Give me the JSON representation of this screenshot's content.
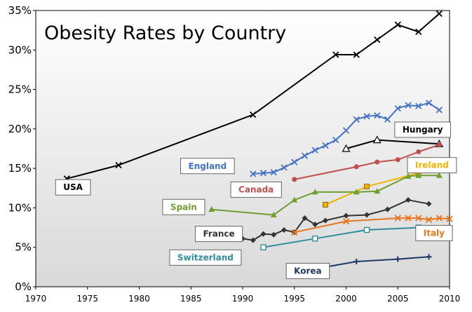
{
  "chart_data": {
    "type": "line",
    "title": "Obesity Rates by Country",
    "xlabel": "",
    "ylabel": "",
    "xlim": [
      1970,
      2010
    ],
    "ylim": [
      0,
      35
    ],
    "x_ticks": [
      "1970",
      "1975",
      "1980",
      "1985",
      "1990",
      "1995",
      "2000",
      "2005",
      "2010"
    ],
    "y_ticks": [
      "0%",
      "5%",
      "10%",
      "15%",
      "20%",
      "25%",
      "30%",
      "35%"
    ],
    "grid": "none",
    "background": "light-gray gradient",
    "series": [
      {
        "name": "USA",
        "color": "#000000",
        "marker": "x",
        "points": [
          [
            1973,
            13.7
          ],
          [
            1978,
            15.4
          ],
          [
            1991,
            21.8
          ],
          [
            1999,
            29.4
          ],
          [
            2001,
            29.4
          ],
          [
            2003,
            31.3
          ],
          [
            2005,
            33.2
          ],
          [
            2007,
            32.3
          ],
          [
            2009,
            34.6
          ]
        ]
      },
      {
        "name": "England",
        "color": "#4472c4",
        "marker": "x",
        "points": [
          [
            1991,
            14.3
          ],
          [
            1992,
            14.4
          ],
          [
            1993,
            14.5
          ],
          [
            1994,
            15.1
          ],
          [
            1995,
            15.8
          ],
          [
            1996,
            16.6
          ],
          [
            1997,
            17.3
          ],
          [
            1998,
            17.9
          ],
          [
            1999,
            18.6
          ],
          [
            2000,
            19.8
          ],
          [
            2001,
            21.2
          ],
          [
            2002,
            21.6
          ],
          [
            2003,
            21.7
          ],
          [
            2004,
            21.2
          ],
          [
            2005,
            22.6
          ],
          [
            2006,
            23.0
          ],
          [
            2007,
            22.9
          ],
          [
            2008,
            23.3
          ],
          [
            2009,
            22.4
          ]
        ]
      },
      {
        "name": "Hungary",
        "color": "#000000",
        "marker": "triangle-open",
        "points": [
          [
            2000,
            17.5
          ],
          [
            2003,
            18.6
          ],
          [
            2009,
            18.1
          ]
        ]
      },
      {
        "name": "Canada",
        "color": "#c0504d",
        "marker": "circle",
        "points": [
          [
            1995,
            13.6
          ],
          [
            2001,
            15.2
          ],
          [
            2003,
            15.8
          ],
          [
            2005,
            16.1
          ],
          [
            2007,
            17.1
          ],
          [
            2009,
            18.0
          ]
        ]
      },
      {
        "name": "Ireland",
        "color": "#f0b400",
        "marker": "square",
        "points": [
          [
            1998,
            10.4
          ],
          [
            2002,
            12.7
          ],
          [
            2007,
            14.4
          ]
        ]
      },
      {
        "name": "Spain",
        "color": "#6f9f30",
        "marker": "triangle",
        "points": [
          [
            1987,
            9.8
          ],
          [
            1993,
            9.1
          ],
          [
            1995,
            11.0
          ],
          [
            1997,
            12.0
          ],
          [
            2001,
            12.0
          ],
          [
            2003,
            12.1
          ],
          [
            2006,
            14.0
          ],
          [
            2007,
            14.1
          ],
          [
            2009,
            14.1
          ]
        ]
      },
      {
        "name": "France",
        "color": "#333333",
        "marker": "diamond",
        "points": [
          [
            1990,
            6.1
          ],
          [
            1991,
            5.9
          ],
          [
            1992,
            6.7
          ],
          [
            1993,
            6.6
          ],
          [
            1994,
            7.2
          ],
          [
            1995,
            6.9
          ],
          [
            1996,
            8.7
          ],
          [
            1997,
            7.9
          ],
          [
            1998,
            8.4
          ],
          [
            2000,
            9.0
          ],
          [
            2002,
            9.1
          ],
          [
            2004,
            9.8
          ],
          [
            2006,
            11.0
          ],
          [
            2008,
            10.5
          ]
        ]
      },
      {
        "name": "Italy",
        "color": "#e8761e",
        "marker": "x",
        "points": [
          [
            1995,
            6.9
          ],
          [
            2000,
            8.3
          ],
          [
            2005,
            8.7
          ],
          [
            2006,
            8.7
          ],
          [
            2007,
            8.7
          ],
          [
            2008,
            8.5
          ],
          [
            2009,
            8.7
          ],
          [
            2010,
            8.6
          ]
        ]
      },
      {
        "name": "Switzerland",
        "color": "#2f8c9c",
        "marker": "square-open",
        "points": [
          [
            1992,
            5.0
          ],
          [
            1997,
            6.1
          ],
          [
            2002,
            7.2
          ],
          [
            2007,
            7.5
          ]
        ]
      },
      {
        "name": "Korea",
        "color": "#1f3864",
        "marker": "plus",
        "points": [
          [
            1998,
            2.5
          ],
          [
            2001,
            3.2
          ],
          [
            2005,
            3.5
          ],
          [
            2008,
            3.8
          ]
        ]
      }
    ],
    "labels": [
      {
        "text": "USA",
        "series": "USA"
      },
      {
        "text": "England",
        "series": "England"
      },
      {
        "text": "Hungary",
        "series": "Hungary"
      },
      {
        "text": "Canada",
        "series": "Canada"
      },
      {
        "text": "Ireland",
        "series": "Ireland"
      },
      {
        "text": "Spain",
        "series": "Spain"
      },
      {
        "text": "France",
        "series": "France"
      },
      {
        "text": "Italy",
        "series": "Italy"
      },
      {
        "text": "Switzerland",
        "series": "Switzerland"
      },
      {
        "text": "Korea",
        "series": "Korea"
      }
    ]
  }
}
